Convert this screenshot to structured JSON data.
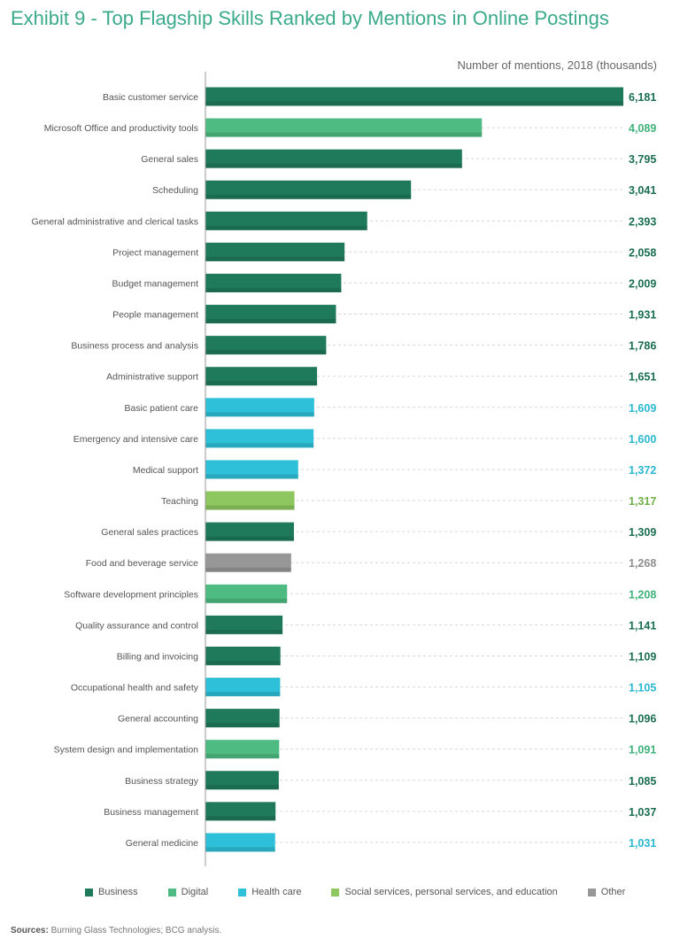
{
  "colors": {
    "business": "#1e7a5a",
    "digital": "#4dbb82",
    "health": "#2ec0d8",
    "social": "#8ec660",
    "other": "#979797"
  },
  "label_colors": {
    "business": "#1a6e50",
    "digital": "#3fb27a",
    "health": "#2ab8d0",
    "social": "#6fb04a",
    "other": "#8f8f8f"
  },
  "title": "Exhibit 9 - Top Flagship Skills Ranked by Mentions in Online Postings",
  "legend": [
    {
      "key": "business",
      "label": "Business"
    },
    {
      "key": "digital",
      "label": "Digital"
    },
    {
      "key": "health",
      "label": "Health care"
    },
    {
      "key": "social",
      "label": "Social services, personal services, and education"
    },
    {
      "key": "other",
      "label": "Other"
    }
  ],
  "sources": {
    "label": "Sources:",
    "text": "Burning Glass Technologies; BCG analysis."
  },
  "chart_data": {
    "type": "bar",
    "orientation": "horizontal",
    "title": "Exhibit 9 - Top Flagship Skills Ranked by Mentions in Online Postings",
    "xlabel": "Number of mentions, 2018 (thousands)",
    "ylabel": "",
    "xlim": [
      0,
      6181
    ],
    "grid": "dashed horizontal guides",
    "categories": [
      "Basic customer service",
      "Microsoft Office and productivity tools",
      "General sales",
      "Scheduling",
      "General administrative and clerical tasks",
      "Project management",
      "Budget management",
      "People management",
      "Business process and analysis",
      "Administrative support",
      "Basic patient care",
      "Emergency and intensive care",
      "Medical support",
      "Teaching",
      "General sales practices",
      "Food and beverage service",
      "Software development principles",
      "Quality assurance and control",
      "Billing and invoicing",
      "Occupational health and safety",
      "General accounting",
      "System design and implementation",
      "Business strategy",
      "Business management",
      "General medicine"
    ],
    "values": [
      6181,
      4089,
      3795,
      3041,
      2393,
      2058,
      2009,
      1931,
      1786,
      1651,
      1609,
      1600,
      1372,
      1317,
      1309,
      1268,
      1208,
      1141,
      1109,
      1105,
      1096,
      1091,
      1085,
      1037,
      1031
    ],
    "value_labels": [
      "6,181",
      "4,089",
      "3,795",
      "3,041",
      "2,393",
      "2,058",
      "2,009",
      "1,931",
      "1,786",
      "1,651",
      "1,609",
      "1,600",
      "1,372",
      "1,317",
      "1,309",
      "1,268",
      "1,208",
      "1,141",
      "1,109",
      "1,105",
      "1,096",
      "1,091",
      "1,085",
      "1,037",
      "1,031"
    ],
    "groups": [
      "business",
      "digital",
      "business",
      "business",
      "business",
      "business",
      "business",
      "business",
      "business",
      "business",
      "health",
      "health",
      "health",
      "social",
      "business",
      "other",
      "digital",
      "business",
      "business",
      "health",
      "business",
      "digital",
      "business",
      "business",
      "health"
    ]
  }
}
